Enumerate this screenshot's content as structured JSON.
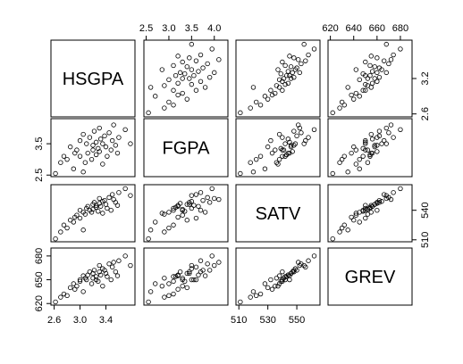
{
  "chart_data": {
    "type": "scatter-matrix",
    "variables": [
      {
        "name": "HSGPA",
        "xlim": [
          2.55,
          3.85
        ],
        "ylim": [
          2.55,
          3.85
        ],
        "xticks": [
          2.6,
          {
            "value": 3.0,
            "label": "3.0"
          },
          3.4
        ],
        "yticks": [
          2.6,
          3.2
        ],
        "values": [
          2.62,
          2.7,
          2.75,
          2.8,
          2.85,
          2.9,
          2.95,
          3.0,
          3.0,
          3.05,
          3.08,
          3.1,
          3.12,
          3.15,
          3.18,
          3.2,
          3.2,
          3.22,
          3.25,
          3.25,
          3.28,
          3.3,
          3.3,
          3.32,
          3.35,
          3.35,
          3.38,
          3.4,
          3.42,
          3.45,
          3.48,
          3.5,
          3.52,
          3.55,
          3.58,
          3.6,
          3.05,
          2.92,
          3.7,
          3.78
        ]
      },
      {
        "name": "FGPA",
        "xlim": [
          2.45,
          4.3
        ],
        "ylim": [
          2.45,
          4.3
        ],
        "xticks": [
          2.5,
          {
            "value": 3.0,
            "label": "3.0"
          },
          3.5,
          {
            "value": 4.0,
            "label": "4.0"
          }
        ],
        "yticks": [
          2.5,
          3.5
        ],
        "values": [
          2.55,
          2.9,
          3.1,
          3.0,
          3.4,
          2.7,
          3.3,
          3.6,
          3.1,
          3.8,
          2.9,
          3.5,
          3.2,
          3.7,
          3.0,
          3.45,
          3.3,
          3.9,
          3.15,
          3.55,
          3.35,
          4.0,
          3.25,
          3.65,
          2.85,
          3.5,
          3.75,
          3.4,
          3.1,
          3.85,
          3.3,
          3.6,
          4.1,
          3.45,
          3.2,
          3.7,
          2.6,
          3.2,
          3.95,
          3.5
        ]
      },
      {
        "name": "SATV",
        "xlim": [
          508,
          566
        ],
        "ylim": [
          508,
          566
        ],
        "xticks": [
          510,
          530,
          550
        ],
        "yticks": [
          510,
          540
        ],
        "values": [
          511,
          518,
          525,
          522,
          530,
          528,
          535,
          532,
          540,
          538,
          536,
          542,
          544,
          540,
          538,
          546,
          541,
          548,
          543,
          545,
          539,
          552,
          547,
          544,
          537,
          549,
          550,
          546,
          542,
          553,
          540,
          556,
          551,
          548,
          545,
          558,
          520,
          533,
          562,
          555
        ]
      },
      {
        "name": "GREV",
        "xlim": [
          618,
          690
        ],
        "ylim": [
          618,
          690
        ],
        "xticks": [
          620,
          640,
          660,
          680
        ],
        "yticks": [
          620,
          650,
          680
        ],
        "values": [
          622,
          628,
          632,
          630,
          640,
          645,
          642,
          650,
          648,
          655,
          652,
          650,
          656,
          660,
          645,
          658,
          652,
          662,
          654,
          650,
          648,
          668,
          660,
          656,
          642,
          664,
          662,
          658,
          654,
          670,
          650,
          666,
          672,
          660,
          655,
          674,
          635,
          638,
          680,
          668
        ]
      }
    ]
  }
}
